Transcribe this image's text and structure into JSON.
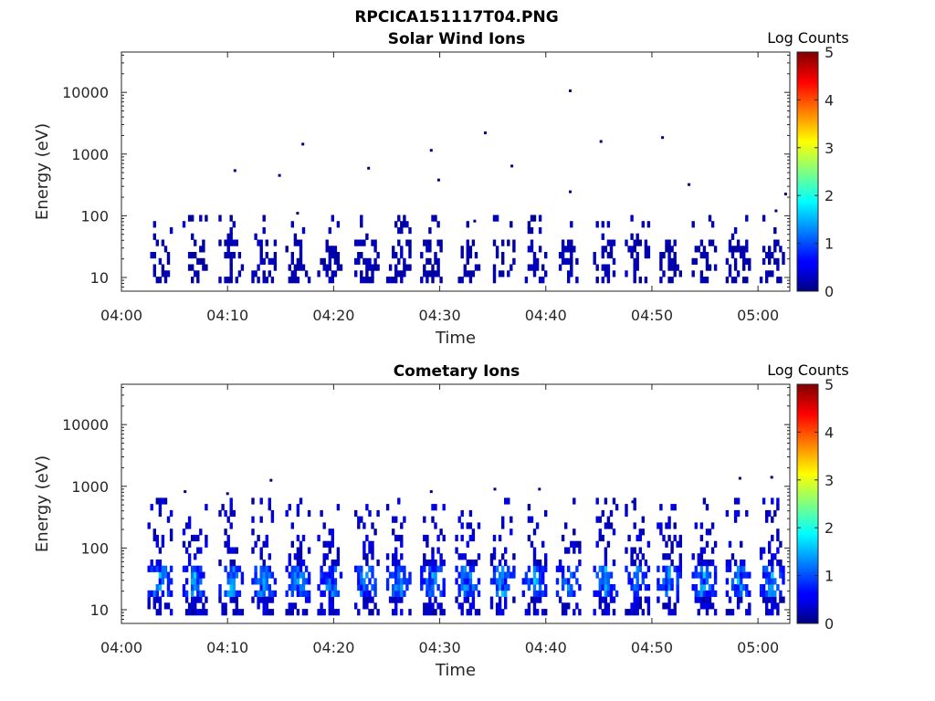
{
  "figure_title": "RPCICA151117T04.PNG",
  "chart_data": [
    {
      "type": "heatmap",
      "title": "Solar Wind Ions",
      "xlabel": "Time",
      "ylabel": "Energy (eV)",
      "x_ticks": [
        "04:00",
        "04:10",
        "04:20",
        "04:30",
        "04:40",
        "04:50",
        "05:00"
      ],
      "x_range_minutes": [
        0,
        63
      ],
      "y_scale": "log",
      "y_ticks": [
        "10",
        "100",
        "1000",
        "10000"
      ],
      "y_range": [
        6,
        45000
      ],
      "colorbar": {
        "title": "Log Counts",
        "range": [
          0,
          5
        ],
        "ticks": [
          "0",
          "1",
          "2",
          "3",
          "4",
          "5"
        ],
        "colormap": "jet"
      },
      "bursts_minutes": [
        3.5,
        6.8,
        10.2,
        13.3,
        16.5,
        19.5,
        23.0,
        26.0,
        29.2,
        32.5,
        35.8,
        38.8,
        42.0,
        45.5,
        48.5,
        51.5,
        54.8,
        58.0,
        61.2
      ],
      "isolated_points": [
        {
          "t": 10.7,
          "e": 540
        },
        {
          "t": 14.9,
          "e": 450
        },
        {
          "t": 17.1,
          "e": 1450
        },
        {
          "t": 23.3,
          "e": 590
        },
        {
          "t": 29.2,
          "e": 1150
        },
        {
          "t": 29.9,
          "e": 380
        },
        {
          "t": 34.3,
          "e": 2200
        },
        {
          "t": 36.8,
          "e": 640
        },
        {
          "t": 42.3,
          "e": 10600
        },
        {
          "t": 42.3,
          "e": 245
        },
        {
          "t": 45.2,
          "e": 1600
        },
        {
          "t": 51.0,
          "e": 1850
        },
        {
          "t": 53.5,
          "e": 320
        },
        {
          "t": 61.7,
          "e": 120
        },
        {
          "t": 62.6,
          "e": 225
        },
        {
          "t": 16.6,
          "e": 110
        },
        {
          "t": 33.3,
          "e": 82
        }
      ],
      "intensity_profile": "mostly 0-0.5 log counts between 10 and 90 eV"
    },
    {
      "type": "heatmap",
      "title": "Cometary Ions",
      "xlabel": "Time",
      "ylabel": "Energy (eV)",
      "x_ticks": [
        "04:00",
        "04:10",
        "04:20",
        "04:30",
        "04:40",
        "04:50",
        "05:00"
      ],
      "x_range_minutes": [
        0,
        63
      ],
      "y_scale": "log",
      "y_ticks": [
        "10",
        "100",
        "1000",
        "10000"
      ],
      "y_range": [
        6,
        45000
      ],
      "colorbar": {
        "title": "Log Counts",
        "range": [
          0,
          5
        ],
        "ticks": [
          "0",
          "1",
          "2",
          "3",
          "4",
          "5"
        ],
        "colormap": "jet"
      },
      "bursts_minutes": [
        3.5,
        6.8,
        10.2,
        13.3,
        16.5,
        19.5,
        23.0,
        26.0,
        29.2,
        32.5,
        35.8,
        38.8,
        42.0,
        45.5,
        48.5,
        51.5,
        54.8,
        58.0,
        61.2
      ],
      "isolated_points": [
        {
          "t": 6.0,
          "e": 820
        },
        {
          "t": 10.0,
          "e": 760
        },
        {
          "t": 14.1,
          "e": 1250
        },
        {
          "t": 29.2,
          "e": 820
        },
        {
          "t": 35.2,
          "e": 900
        },
        {
          "t": 39.4,
          "e": 900
        },
        {
          "t": 48.2,
          "e": 560
        },
        {
          "t": 58.3,
          "e": 1350
        },
        {
          "t": 61.3,
          "e": 1400
        }
      ],
      "intensity_profile": "peak ~1.5 log counts at 15-40 eV, extending to ~600 eV"
    }
  ]
}
